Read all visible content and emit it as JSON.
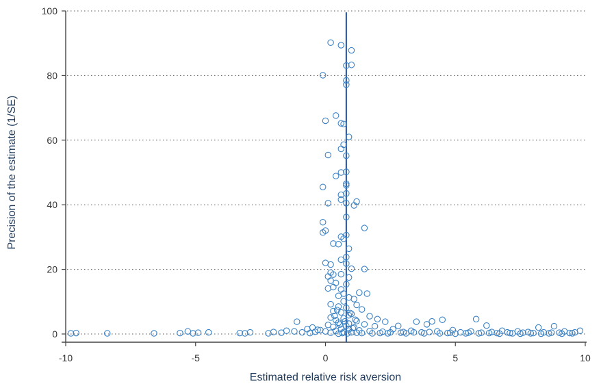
{
  "chart_data": {
    "type": "scatter",
    "title": "",
    "xlabel": "Estimated relative risk aversion",
    "ylabel": "Precision of the estimate (1/SE)",
    "xlim": [
      -10,
      10
    ],
    "ylim": [
      0,
      100
    ],
    "xticks": [
      -10,
      -5,
      0,
      5,
      10
    ],
    "yticks": [
      0,
      20,
      40,
      60,
      80,
      100
    ],
    "xtick_labels": [
      "-10",
      "-5",
      "0",
      "5",
      "10"
    ],
    "ytick_labels": [
      "0",
      "20",
      "40",
      "60",
      "80",
      "100"
    ],
    "grid": "horizontal dotted",
    "reference_line": {
      "x": 0.8,
      "color": "#1b4fa0"
    },
    "marker": "hollow circle",
    "point_color": "#3b82c4",
    "series": [
      {
        "points": [
          [
            0.2,
            90.2
          ],
          [
            0.6,
            89.4
          ],
          [
            1.0,
            87.8
          ],
          [
            1.0,
            83.3
          ],
          [
            0.8,
            83.1
          ],
          [
            -0.1,
            80.1
          ],
          [
            0.8,
            78.5
          ],
          [
            0.8,
            77.2
          ],
          [
            0.4,
            67.6
          ],
          [
            0.0,
            66.0
          ],
          [
            0.6,
            65.2
          ],
          [
            0.7,
            65.0
          ],
          [
            0.9,
            61.0
          ],
          [
            0.7,
            58.6
          ],
          [
            0.6,
            57.3
          ],
          [
            0.1,
            55.4
          ],
          [
            0.8,
            55.2
          ],
          [
            0.8,
            50.2
          ],
          [
            0.6,
            50.0
          ],
          [
            0.4,
            48.9
          ],
          [
            0.8,
            46.5
          ],
          [
            0.8,
            46.0
          ],
          [
            -0.1,
            45.5
          ],
          [
            0.8,
            43.5
          ],
          [
            0.6,
            43.1
          ],
          [
            0.6,
            41.6
          ],
          [
            1.2,
            41.0
          ],
          [
            0.8,
            40.5
          ],
          [
            0.1,
            40.5
          ],
          [
            1.1,
            39.8
          ],
          [
            0.8,
            36.2
          ],
          [
            -0.1,
            34.6
          ],
          [
            0.0,
            32.0
          ],
          [
            -0.1,
            31.4
          ],
          [
            1.5,
            32.8
          ],
          [
            0.8,
            30.6
          ],
          [
            0.6,
            30.1
          ],
          [
            0.7,
            29.5
          ],
          [
            0.3,
            28.0
          ],
          [
            0.5,
            27.8
          ],
          [
            0.9,
            26.4
          ],
          [
            0.6,
            23.0
          ],
          [
            0.8,
            23.8
          ],
          [
            0.0,
            22.0
          ],
          [
            0.2,
            21.5
          ],
          [
            0.8,
            21.8
          ],
          [
            1.0,
            20.2
          ],
          [
            1.5,
            20.1
          ],
          [
            0.2,
            19.0
          ],
          [
            0.3,
            18.4
          ],
          [
            0.6,
            18.5
          ],
          [
            0.1,
            17.8
          ],
          [
            0.9,
            17.5
          ],
          [
            0.2,
            16.5
          ],
          [
            0.4,
            15.8
          ],
          [
            0.8,
            15.4
          ],
          [
            0.3,
            14.5
          ],
          [
            0.1,
            14.1
          ],
          [
            0.6,
            13.8
          ],
          [
            1.3,
            12.8
          ],
          [
            1.6,
            12.5
          ],
          [
            0.5,
            11.8
          ],
          [
            0.9,
            11.3
          ],
          [
            1.1,
            10.8
          ],
          [
            0.7,
            10.1
          ],
          [
            0.2,
            9.2
          ],
          [
            1.2,
            9.0
          ],
          [
            0.5,
            8.5
          ],
          [
            0.8,
            8.1
          ],
          [
            1.4,
            7.6
          ],
          [
            0.3,
            7.1
          ],
          [
            0.6,
            6.7
          ],
          [
            1.0,
            6.2
          ],
          [
            0.9,
            5.8
          ],
          [
            1.7,
            5.5
          ],
          [
            0.2,
            5.1
          ],
          [
            0.7,
            4.8
          ],
          [
            2.0,
            4.6
          ],
          [
            0.4,
            4.3
          ],
          [
            1.2,
            4.0
          ],
          [
            2.3,
            3.8
          ],
          [
            0.5,
            3.5
          ],
          [
            0.9,
            3.2
          ],
          [
            1.5,
            3.0
          ],
          [
            0.1,
            2.8
          ],
          [
            0.8,
            2.5
          ],
          [
            1.9,
            2.4
          ],
          [
            0.3,
            2.2
          ],
          [
            1.1,
            2.0
          ],
          [
            -0.5,
            2.0
          ],
          [
            0.6,
            1.6
          ],
          [
            2.6,
            1.5
          ],
          [
            0.9,
            1.4
          ],
          [
            -0.3,
            1.3
          ],
          [
            1.3,
            1.1
          ],
          [
            0.4,
            1.0
          ],
          [
            1.7,
            0.9
          ],
          [
            0.0,
            0.8
          ],
          [
            2.2,
            0.7
          ],
          [
            0.7,
            0.6
          ],
          [
            1.0,
            0.5
          ],
          [
            0.2,
            0.4
          ],
          [
            -9.8,
            0.2
          ],
          [
            -9.6,
            0.3
          ],
          [
            -8.4,
            0.2
          ],
          [
            -6.6,
            0.2
          ],
          [
            -5.6,
            0.3
          ],
          [
            -5.3,
            0.8
          ],
          [
            -5.1,
            0.2
          ],
          [
            -4.9,
            0.4
          ],
          [
            -4.5,
            0.5
          ],
          [
            -3.3,
            0.3
          ],
          [
            -3.1,
            0.2
          ],
          [
            -2.9,
            0.5
          ],
          [
            -2.2,
            0.2
          ],
          [
            -2.0,
            0.6
          ],
          [
            -1.7,
            0.4
          ],
          [
            -1.5,
            1.0
          ],
          [
            -1.2,
            0.8
          ],
          [
            -1.1,
            3.8
          ],
          [
            -0.9,
            0.5
          ],
          [
            -0.7,
            1.5
          ],
          [
            -0.6,
            0.3
          ],
          [
            -0.4,
            0.7
          ],
          [
            -0.2,
            1.2
          ],
          [
            2.8,
            2.5
          ],
          [
            3.0,
            0.6
          ],
          [
            3.3,
            1.0
          ],
          [
            3.5,
            3.8
          ],
          [
            3.7,
            0.5
          ],
          [
            3.9,
            3.0
          ],
          [
            4.1,
            3.9
          ],
          [
            4.3,
            0.8
          ],
          [
            4.5,
            4.4
          ],
          [
            4.7,
            0.3
          ],
          [
            4.9,
            1.2
          ],
          [
            5.2,
            0.5
          ],
          [
            5.4,
            0.2
          ],
          [
            5.6,
            0.8
          ],
          [
            5.8,
            4.6
          ],
          [
            6.0,
            0.4
          ],
          [
            6.2,
            2.6
          ],
          [
            6.4,
            0.6
          ],
          [
            6.6,
            0.3
          ],
          [
            6.8,
            1.0
          ],
          [
            7.0,
            0.5
          ],
          [
            7.2,
            0.2
          ],
          [
            7.4,
            0.8
          ],
          [
            7.6,
            0.4
          ],
          [
            7.8,
            0.6
          ],
          [
            8.0,
            0.3
          ],
          [
            8.2,
            2.0
          ],
          [
            8.4,
            0.5
          ],
          [
            8.6,
            0.2
          ],
          [
            8.8,
            2.4
          ],
          [
            9.0,
            0.4
          ],
          [
            9.2,
            0.8
          ],
          [
            9.4,
            0.3
          ],
          [
            9.6,
            0.5
          ],
          [
            9.8,
            1.0
          ],
          [
            2.1,
            0.3
          ],
          [
            2.4,
            0.2
          ],
          [
            2.9,
            0.4
          ],
          [
            3.1,
            0.2
          ],
          [
            3.4,
            0.5
          ],
          [
            3.8,
            0.2
          ],
          [
            4.0,
            0.6
          ],
          [
            4.4,
            0.2
          ],
          [
            4.8,
            0.4
          ],
          [
            5.0,
            0.1
          ],
          [
            5.5,
            0.4
          ],
          [
            5.9,
            0.2
          ],
          [
            6.3,
            0.3
          ],
          [
            6.7,
            0.1
          ],
          [
            7.1,
            0.3
          ],
          [
            7.5,
            0.1
          ],
          [
            7.9,
            0.2
          ],
          [
            8.3,
            0.1
          ],
          [
            8.7,
            0.4
          ],
          [
            9.1,
            0.1
          ],
          [
            9.5,
            0.2
          ],
          [
            1.4,
            0.3
          ],
          [
            1.8,
            0.2
          ],
          [
            2.5,
            0.5
          ],
          [
            0.5,
            0.1
          ],
          [
            0.85,
            0.2
          ],
          [
            1.2,
            0.4
          ],
          [
            0.65,
            0.3
          ],
          [
            1.05,
            1.8
          ],
          [
            0.75,
            3.9
          ],
          [
            0.95,
            6.5
          ],
          [
            0.55,
            2.9
          ],
          [
            1.15,
            4.4
          ],
          [
            0.35,
            5.6
          ],
          [
            0.45,
            7.4
          ],
          [
            0.7,
            12.5
          ]
        ]
      }
    ]
  }
}
